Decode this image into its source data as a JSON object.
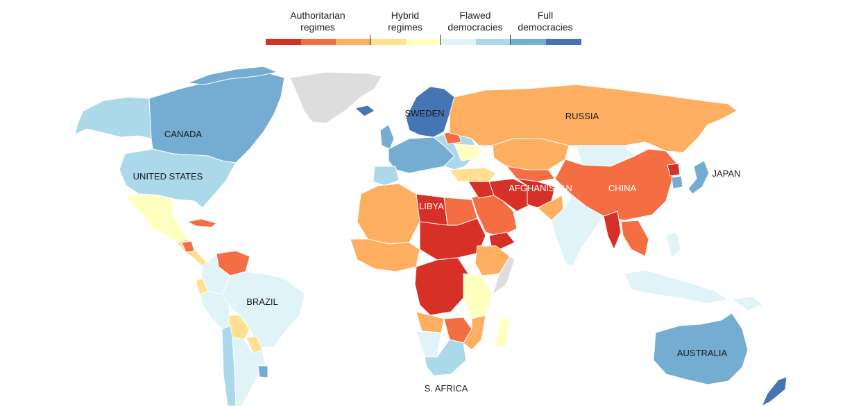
{
  "legend": {
    "labels": [
      {
        "text": "Authoritarian\nregimes"
      },
      {
        "text": "Hybrid\nregimes"
      },
      {
        "text": "Flawed\ndemocracies"
      },
      {
        "text": "Full\ndemocracies"
      }
    ],
    "colors": [
      "#d73027",
      "#f46d43",
      "#fdae61",
      "#fee090",
      "#ffffbf",
      "#e0f3f8",
      "#abd9e9",
      "#74add1",
      "#4575b4"
    ]
  },
  "colors": {
    "no_data": "#dddddd",
    "borders": "#ffffff"
  },
  "labels": {
    "canada": "CANADA",
    "united_states": "UNITED STATES",
    "brazil": "BRAZIL",
    "libya": "LIBYA",
    "sweden": "SWEDEN",
    "russia": "RUSSIA",
    "afghanistan": "AFGHANISTAN",
    "china": "CHINA",
    "japan": "JAPAN",
    "australia": "AUSTRALIA",
    "south_africa": "S. AFRICA"
  }
}
